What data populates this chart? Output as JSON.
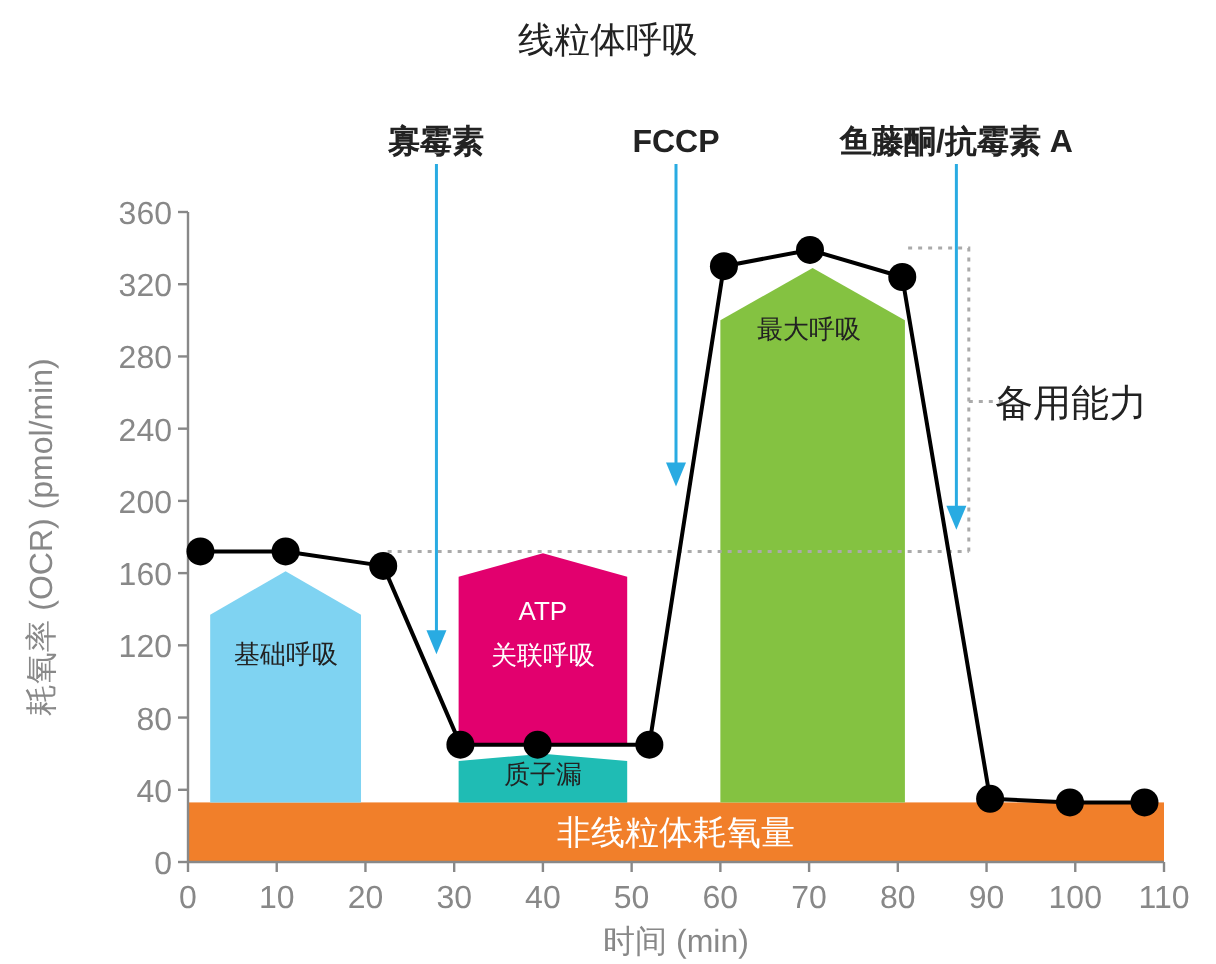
{
  "chart_data": {
    "type": "line",
    "title": "线粒体呼吸",
    "xlabel": "时间 (min)",
    "ylabel": "耗氧率 (OCR) (pmol/min)",
    "xlim": [
      0,
      110
    ],
    "xticks": [
      0,
      10,
      20,
      30,
      40,
      50,
      60,
      70,
      80,
      90,
      100,
      110
    ],
    "ylim": [
      0,
      360
    ],
    "yticks": [
      0,
      40,
      80,
      120,
      160,
      200,
      240,
      280,
      320,
      360
    ],
    "grid": false,
    "marker": "circle",
    "line_style": "solid",
    "ref_lines": [
      {
        "axis": "y",
        "value": 172,
        "color": "#aaaaaa",
        "line_style": "dotted"
      }
    ],
    "series": [
      {
        "color": "#000000",
        "x": [
          1.4,
          11,
          22,
          30.7,
          39.4,
          52,
          60.4,
          70.1,
          80.5,
          90.4,
          99.4,
          107.8
        ],
        "values": [
          172,
          172,
          164,
          65,
          65,
          65,
          330,
          339,
          324,
          35,
          33,
          33
        ]
      }
    ],
    "bands": [
      {
        "axis": "y",
        "from": 0,
        "to": 33,
        "label": "非线粒体耗氧量",
        "color": "#f17f2a"
      }
    ],
    "annotations": [
      "寡霉素",
      "FCCP",
      "鱼藤酮/抗霉素 A",
      "基础呼吸",
      "ATP\n关联呼吸",
      "质子漏",
      "最大呼吸",
      "备用能力"
    ]
  }
}
